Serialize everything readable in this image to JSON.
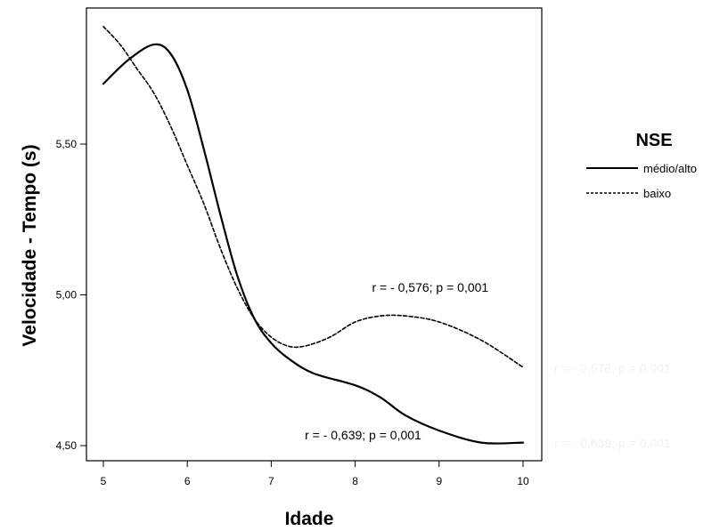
{
  "chart_data": {
    "type": "line",
    "xlabel": "Idade",
    "ylabel": "Velocidade  - Tempo (s)",
    "xlim": [
      5,
      10
    ],
    "ylim": [
      4.47,
      5.91
    ],
    "x_ticks": [
      "5",
      "6",
      "7",
      "8",
      "9",
      "10"
    ],
    "y_ticks": [
      "4,50",
      "5,00",
      "5,50"
    ],
    "grid": false,
    "legend_title": "NSE",
    "legend_position": "right",
    "series": [
      {
        "name": "médio/alto",
        "style": "solid",
        "x": [
          5.0,
          5.3,
          5.6,
          5.8,
          6.0,
          6.2,
          6.4,
          6.6,
          6.8,
          7.0,
          7.2,
          7.5,
          8.0,
          8.3,
          8.6,
          9.0,
          9.5,
          10.0
        ],
        "y": [
          5.7,
          5.78,
          5.83,
          5.8,
          5.68,
          5.48,
          5.26,
          5.06,
          4.92,
          4.84,
          4.79,
          4.74,
          4.7,
          4.66,
          4.6,
          4.55,
          4.51,
          4.51
        ]
      },
      {
        "name": "baixo",
        "style": "dashed",
        "x": [
          5.0,
          5.2,
          5.4,
          5.6,
          5.8,
          6.0,
          6.2,
          6.4,
          6.6,
          6.8,
          7.0,
          7.2,
          7.4,
          7.7,
          8.0,
          8.3,
          8.6,
          9.0,
          9.5,
          10.0
        ],
        "y": [
          5.89,
          5.83,
          5.75,
          5.67,
          5.56,
          5.43,
          5.3,
          5.15,
          5.02,
          4.92,
          4.86,
          4.83,
          4.83,
          4.86,
          4.91,
          4.93,
          4.93,
          4.91,
          4.85,
          4.76
        ]
      }
    ],
    "annotations": [
      {
        "text": "r = - 0,576; p = 0,001",
        "x": 8.2,
        "y": 5.01
      },
      {
        "text": "r = - 0,639; p = 0,001",
        "x": 7.4,
        "y": 4.52
      }
    ],
    "ghost_annotations": [
      {
        "text": "r = - 0,576; p = 0,001"
      },
      {
        "text": "r = - 0,639; p = 0,001"
      }
    ]
  }
}
